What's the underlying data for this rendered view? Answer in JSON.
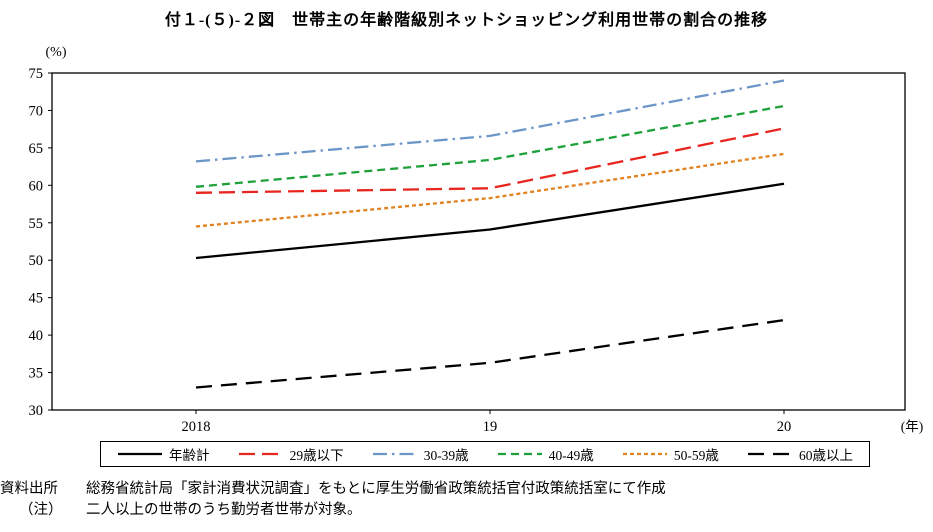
{
  "title": "付１-(５)-２図　世帯主の年齢階級別ネットショッピング利用世帯の割合の推移",
  "chart_data": {
    "type": "line",
    "x_tick_labels": [
      "2018",
      "19",
      "20"
    ],
    "x_axis_unit": "(年)",
    "y_axis_unit": "(%)",
    "ylim": [
      30,
      75
    ],
    "ytick_step": 5,
    "grid": false,
    "legend_position": "bottom-boxed",
    "series": [
      {
        "name": "年齢計",
        "color": "#000000",
        "dash": "",
        "values": [
          50.3,
          54.1,
          60.2
        ]
      },
      {
        "name": "29歳以下",
        "color": "#e8251f",
        "dash": "16 7",
        "values": [
          59.0,
          59.6,
          67.6
        ]
      },
      {
        "name": "30-39歳",
        "color": "#6d96c8",
        "dash": "14 5 2.5 5",
        "values": [
          63.2,
          66.6,
          74.0
        ]
      },
      {
        "name": "40-49歳",
        "color": "#1ea03a",
        "dash": "8 5",
        "values": [
          59.8,
          63.4,
          70.6
        ]
      },
      {
        "name": "50-59歳",
        "color": "#e0821e",
        "dash": "4 3",
        "values": [
          54.5,
          58.3,
          64.2
        ]
      },
      {
        "name": "60歳以上",
        "color": "#000000",
        "dash": "16 9",
        "values": [
          33.0,
          36.3,
          42.0
        ]
      }
    ]
  },
  "footer": {
    "source_label": "資料出所",
    "source_text": "総務省統計局「家計消費状況調査」をもとに厚生労働省政策統括官付政策統括室にて作成",
    "note_label": "（注）",
    "note_text": "二人以上の世帯のうち勤労者世帯が対象。"
  }
}
